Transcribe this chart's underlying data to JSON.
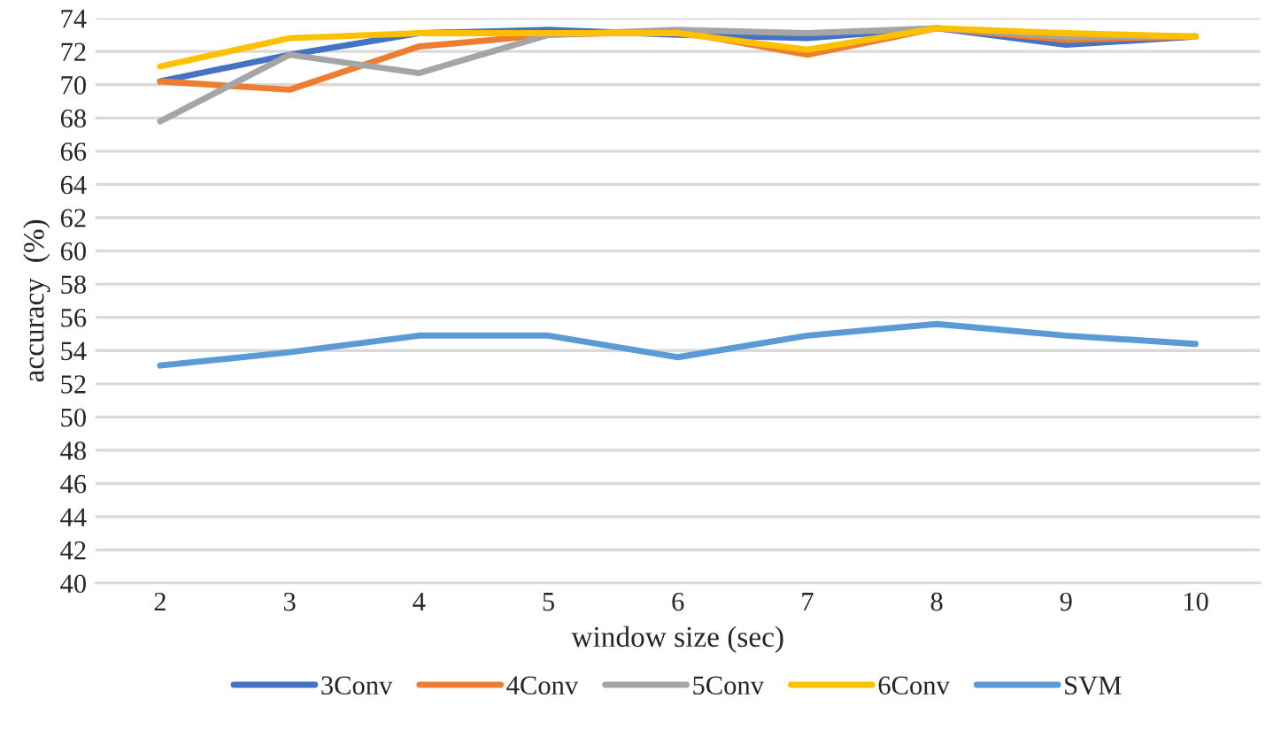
{
  "chart_data": {
    "type": "line",
    "xlabel": "window size (sec)",
    "ylabel": "accuracy  (%)",
    "categories": [
      "2",
      "3",
      "4",
      "5",
      "6",
      "7",
      "8",
      "9",
      "10"
    ],
    "series": [
      {
        "name": "3Conv",
        "color": "#4472c4",
        "values": [
          70.2,
          71.8,
          73.1,
          73.3,
          73.0,
          72.8,
          73.4,
          72.4,
          72.9
        ]
      },
      {
        "name": "4Conv",
        "color": "#ed7d31",
        "values": [
          70.2,
          69.7,
          72.3,
          73.0,
          73.2,
          71.8,
          73.4,
          72.7,
          72.9
        ]
      },
      {
        "name": "5Conv",
        "color": "#a5a5a5",
        "values": [
          67.8,
          71.8,
          70.7,
          73.0,
          73.3,
          73.1,
          73.4,
          72.9,
          72.9
        ]
      },
      {
        "name": "6Conv",
        "color": "#ffc000",
        "values": [
          71.1,
          72.8,
          73.1,
          73.1,
          73.1,
          72.1,
          73.4,
          73.1,
          72.9
        ]
      },
      {
        "name": "SVM",
        "color": "#5b9bd5",
        "values": [
          53.1,
          53.9,
          54.9,
          54.9,
          53.6,
          54.9,
          55.6,
          54.9,
          54.4
        ]
      }
    ],
    "ylim": [
      40,
      74
    ],
    "yticks": [
      40,
      42,
      44,
      46,
      48,
      50,
      52,
      54,
      56,
      58,
      60,
      62,
      64,
      66,
      68,
      70,
      72,
      74
    ],
    "grid": "y",
    "legend": "bottom",
    "marker": "none",
    "line_style": "solid"
  }
}
